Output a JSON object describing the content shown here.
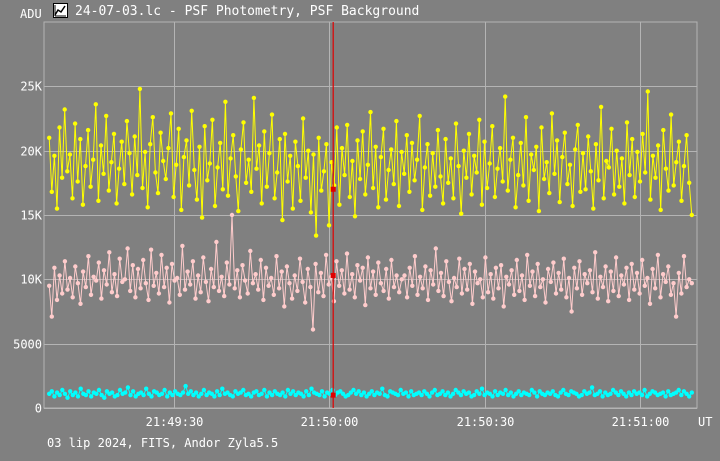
{
  "window": {
    "title": "24-07-03.lc - PSF Photometry, PSF Background",
    "icon": "chart-icon"
  },
  "footer": {
    "info": "03 lip 2024, FITS, Andor Zyla5.5"
  },
  "colors": {
    "background": "#808080",
    "grid": "#b4b4b4",
    "axis_text": "#ffffff",
    "cursor": "#e00000"
  },
  "chart_data": {
    "type": "line",
    "title": "",
    "y_unit_label": "ADU",
    "x_unit_label": "UT",
    "ylim": [
      0,
      30000
    ],
    "xlim": [
      "21:49:05",
      "21:51:11"
    ],
    "grid": true,
    "y_ticks": [
      {
        "value": 0,
        "label": "0"
      },
      {
        "value": 5000,
        "label": "5000"
      },
      {
        "value": 10000,
        "label": "10K"
      },
      {
        "value": 15000,
        "label": "15K"
      },
      {
        "value": 20000,
        "label": "20K"
      },
      {
        "value": 25000,
        "label": "25K"
      }
    ],
    "x_ticks": [
      {
        "time": "21:49:30",
        "label": "21:49:30"
      },
      {
        "time": "21:50:00",
        "label": "21:50:00"
      },
      {
        "time": "21:50:30",
        "label": "21:50:30"
      },
      {
        "time": "21:51:00",
        "label": "21:51:00"
      }
    ],
    "cursor_time": "21:50:00.8",
    "cursor_marks": [
      {
        "series": "PSF Photometry",
        "value": 17000
      },
      {
        "series": "PSF Photometry",
        "value": 10300
      },
      {
        "series": "PSF Background",
        "value": 1000
      }
    ],
    "series": [
      {
        "color": "#ffff00",
        "t_start": "21:49:06",
        "t_end": "21:51:10",
        "values": [
          21000,
          16800,
          19600,
          15500,
          21800,
          17900,
          23200,
          18400,
          19700,
          16300,
          22100,
          17600,
          20900,
          15800,
          18800,
          21600,
          17200,
          19300,
          23600,
          16100,
          20400,
          18200,
          22700,
          16900,
          19100,
          21300,
          15900,
          18600,
          20700,
          17400,
          22300,
          19800,
          16600,
          21100,
          18100,
          24800,
          17100,
          19900,
          15600,
          20500,
          22600,
          18300,
          16700,
          21400,
          19200,
          17800,
          20200,
          22900,
          16400,
          18900,
          21700,
          15400,
          19500,
          20800,
          17300,
          23100,
          18500,
          16200,
          20300,
          14800,
          21900,
          17700,
          19000,
          22400,
          15700,
          18700,
          20600,
          17000,
          23800,
          16500,
          19400,
          21200,
          18000,
          15300,
          20100,
          22200,
          17500,
          19300,
          16800,
          24100,
          18600,
          20400,
          15900,
          21500,
          17200,
          19800,
          22800,
          16300,
          18300,
          20900,
          14600,
          21300,
          17600,
          19600,
          15500,
          20700,
          18800,
          16100,
          22500,
          17900,
          20000,
          15200,
          19700,
          13400,
          21000,
          16900,
          18400,
          20500,
          14200,
          19100,
          17300,
          21800,
          15800,
          20200,
          18100,
          22000,
          16400,
          19200,
          14900,
          20800,
          17800,
          21500,
          16600,
          18900,
          23000,
          17100,
          20300,
          15600,
          19500,
          21700,
          16200,
          18500,
          20100,
          17400,
          22300,
          15700,
          19900,
          18200,
          21200,
          16800,
          20600,
          17700,
          19300,
          22700,
          15400,
          18700,
          20500,
          16500,
          19800,
          17200,
          21600,
          18000,
          15900,
          20900,
          17500,
          19400,
          16300,
          22100,
          18800,
          15100,
          20000,
          17900,
          21300,
          16600,
          19600,
          18300,
          22400,
          15800,
          20700,
          17100,
          19000,
          21900,
          16400,
          18600,
          20200,
          17600,
          24200,
          16900,
          19300,
          21000,
          15600,
          18100,
          20600,
          17300,
          22600,
          16100,
          19700,
          18500,
          20300,
          15300,
          21800,
          17800,
          19100,
          16700,
          22900,
          18200,
          20800,
          16000,
          19500,
          21400,
          17400,
          18900,
          15700,
          20100,
          22000,
          16800,
          19800,
          17000,
          21100,
          18400,
          15500,
          20500,
          17700,
          23400,
          16300,
          19200,
          18700,
          21700,
          16600,
          20000,
          17200,
          19400,
          15900,
          22200,
          18100,
          20900,
          16400,
          19900,
          17600,
          21300,
          18300,
          24600,
          16200,
          19600,
          17900,
          20400,
          15400,
          21600,
          18600,
          16900,
          22800,
          17300,
          19100,
          20700,
          16100,
          18800,
          21200,
          17500,
          15000
        ]
      },
      {
        "color": "#ffcccc",
        "t_start": "21:49:06",
        "t_end": "21:51:10",
        "values": [
          9500,
          7100,
          10900,
          8400,
          10300,
          8900,
          11400,
          9200,
          10100,
          8600,
          11000,
          9700,
          8100,
          10600,
          9400,
          11800,
          8800,
          10200,
          9900,
          11300,
          8500,
          10700,
          9600,
          12100,
          9000,
          10400,
          8700,
          11600,
          9800,
          10000,
          12400,
          9100,
          11100,
          8600,
          10800,
          9300,
          11500,
          9700,
          8400,
          12300,
          9500,
          10500,
          8900,
          11900,
          9400,
          10900,
          8200,
          11200,
          9900,
          10100,
          8800,
          12600,
          9200,
          10600,
          9600,
          11400,
          8500,
          10300,
          9000,
          11700,
          9800,
          8300,
          10800,
          9400,
          12900,
          9100,
          10200,
          8700,
          11300,
          9600,
          15000,
          9300,
          10700,
          8600,
          11100,
          9900,
          8900,
          12200,
          9700,
          10400,
          9200,
          11500,
          8400,
          10900,
          9500,
          10100,
          8800,
          11800,
          9300,
          10600,
          7900,
          11000,
          9700,
          8500,
          10300,
          9100,
          11600,
          9800,
          8200,
          10800,
          9400,
          6100,
          11200,
          9000,
          10500,
          8700,
          11900,
          9600,
          10200,
          8300,
          11400,
          9500,
          10700,
          8900,
          12000,
          9200,
          10400,
          8600,
          11100,
          9900,
          10900,
          8000,
          11700,
          9300,
          10600,
          8800,
          11300,
          9700,
          9100,
          10800,
          8500,
          11500,
          9400,
          10300,
          9000,
          10000,
          10300,
          8600,
          10900,
          9500,
          11800,
          8800,
          10200,
          9300,
          11000,
          8400,
          10700,
          9600,
          12400,
          9100,
          10500,
          8700,
          11400,
          9800,
          8300,
          10100,
          9400,
          11600,
          8900,
          10800,
          9200,
          11200,
          8100,
          10600,
          9700,
          10000,
          8600,
          11700,
          9000,
          10400,
          8500,
          10900,
          9300,
          11100,
          7900,
          10200,
          9600,
          10700,
          8800,
          11500,
          9100,
          10300,
          8400,
          11900,
          9500,
          10600,
          8700,
          11200,
          9400,
          10000,
          8200,
          10800,
          9800,
          11300,
          8900,
          10500,
          9200,
          11600,
          8600,
          10100,
          7500,
          10900,
          9300,
          11400,
          8800,
          10400,
          9700,
          10700,
          9000,
          12100,
          8500,
          10200,
          9400,
          11000,
          8300,
          10600,
          9100,
          11700,
          8700,
          10300,
          9600,
          10900,
          8400,
          11200,
          9200,
          10500,
          8900,
          11500,
          9500,
          10100,
          8100,
          10800,
          9300,
          11900,
          8600,
          10400,
          9800,
          11000,
          8800,
          9700,
          7100,
          10500,
          8900,
          11800,
          9400,
          10000,
          9700
        ]
      },
      {
        "color": "#00ffff",
        "t_start": "21:49:06",
        "t_end": "21:51:10",
        "values": [
          1100,
          1300,
          900,
          1200,
          1000,
          1400,
          1100,
          800,
          1300,
          1000,
          1200,
          900,
          1500,
          1100,
          1000,
          1300,
          900,
          1200,
          1100,
          1400,
          1000,
          800,
          1300,
          1100,
          1200,
          900,
          1000,
          1400,
          1100,
          1200,
          1600,
          1000,
          1300,
          900,
          1100,
          1200,
          1000,
          1500,
          1100,
          900,
          1300,
          1200,
          1000,
          1100,
          1400,
          900,
          1200,
          1000,
          1300,
          1100,
          1000,
          1200,
          1700,
          1100,
          1300,
          1000,
          1200,
          900,
          1100,
          1400,
          1000,
          1200,
          1100,
          900,
          1300,
          1000,
          1500,
          1100,
          1200,
          1000,
          900,
          1300,
          1100,
          1200,
          1400,
          1000,
          1100,
          900,
          1200,
          1300,
          1000,
          1100,
          1400,
          900,
          1200,
          1000,
          1300,
          1100,
          1000,
          1200,
          900,
          1400,
          1100,
          1300,
          1000,
          1200,
          1100,
          900,
          1300,
          1000,
          1500,
          1200,
          1100,
          1000,
          1300,
          900,
          1200,
          1100,
          1400,
          1000,
          1200,
          1300,
          1100,
          900,
          1000,
          1200,
          1400,
          1100,
          1300,
          1000,
          1200,
          900,
          1100,
          1300,
          1000,
          1200,
          1100,
          1500,
          1000,
          900,
          1300,
          1200,
          1100,
          1000,
          1400,
          1100,
          1200,
          900,
          1300,
          1000,
          1100,
          1200,
          1000,
          1300,
          1100,
          900,
          1200,
          1400,
          1000,
          1100,
          1300,
          1000,
          1200,
          900,
          1100,
          1400,
          1200,
          1000,
          1300,
          1100,
          1200,
          900,
          1000,
          1300,
          1100,
          1500,
          1000,
          1200,
          1100,
          900,
          1300,
          1000,
          1200,
          1100,
          1400,
          1000,
          1200,
          900,
          1100,
          1300,
          1000,
          1200,
          1100,
          1000,
          1400,
          1200,
          900,
          1300,
          1100,
          1000,
          1200,
          1100,
          1300,
          1000,
          900,
          1200,
          1400,
          1100,
          1000,
          1300,
          1200,
          1100,
          900,
          1000,
          1300,
          1100,
          1200,
          1600,
          1000,
          1100,
          1300,
          900,
          1200,
          1000,
          1100,
          1400,
          1200,
          1000,
          1300,
          1100,
          900,
          1200,
          1000,
          1300,
          1100,
          1200,
          1000,
          1400,
          900,
          1100,
          1300,
          1200,
          1000,
          1100,
          1200,
          900,
          1300,
          1000,
          1100,
          1200,
          1400,
          1000,
          1300,
          1100,
          900,
          1200
        ]
      }
    ]
  }
}
